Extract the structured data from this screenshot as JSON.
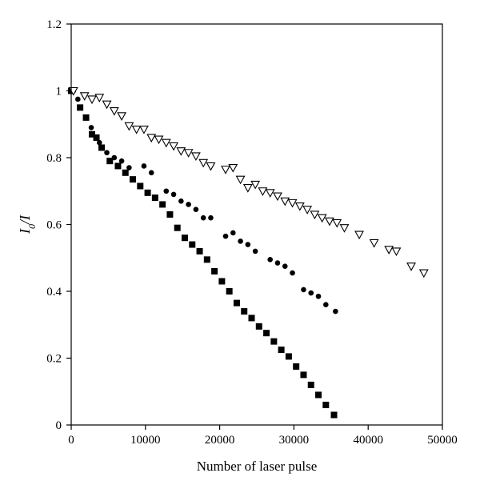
{
  "chart_data": {
    "type": "scatter",
    "xlabel": "Number of laser pulse",
    "ylabel": {
      "main": "I",
      "sub": "0",
      "rest": "/I"
    },
    "xlim": [
      0,
      50000
    ],
    "ylim": [
      0,
      1.2
    ],
    "xticks": [
      0,
      10000,
      20000,
      30000,
      40000,
      50000
    ],
    "yticks": [
      0,
      0.2,
      0.4,
      0.6,
      0.8,
      1,
      1.2
    ],
    "xtick_labels": [
      "0",
      "10000",
      "20000",
      "30000",
      "40000",
      "50000"
    ],
    "ytick_labels": [
      "0",
      "0.2",
      "0.4",
      "0.6",
      "0.8",
      "1",
      "1.2"
    ],
    "grid": false,
    "legend": "none",
    "series": [
      {
        "marker": "square-filled",
        "color": "#000000",
        "x": [
          0,
          1200,
          2000,
          2800,
          3400,
          4100,
          5200,
          6300,
          7300,
          8300,
          9300,
          10300,
          11300,
          12300,
          13300,
          14300,
          15300,
          16300,
          17300,
          18300,
          19300,
          20300,
          21300,
          22300,
          23300,
          24300,
          25300,
          26300,
          27300,
          28300,
          29300,
          30300,
          31300,
          32300,
          33300,
          34300,
          35400
        ],
        "y": [
          1.0,
          0.95,
          0.92,
          0.87,
          0.86,
          0.83,
          0.79,
          0.775,
          0.755,
          0.735,
          0.715,
          0.695,
          0.68,
          0.66,
          0.63,
          0.59,
          0.56,
          0.54,
          0.52,
          0.495,
          0.46,
          0.43,
          0.4,
          0.365,
          0.34,
          0.32,
          0.295,
          0.275,
          0.25,
          0.225,
          0.205,
          0.175,
          0.15,
          0.12,
          0.09,
          0.06,
          0.03
        ]
      },
      {
        "marker": "circle-filled",
        "color": "#000000",
        "x": [
          300,
          900,
          2700,
          3800,
          4800,
          5800,
          6800,
          7800,
          9800,
          10800,
          12800,
          13800,
          14800,
          15800,
          16800,
          17800,
          18800,
          20800,
          21800,
          22800,
          23800,
          24800,
          26800,
          27800,
          28800,
          29800,
          31300,
          32300,
          33300,
          34300,
          35600
        ],
        "y": [
          1.0,
          0.975,
          0.89,
          0.845,
          0.815,
          0.8,
          0.79,
          0.77,
          0.775,
          0.755,
          0.7,
          0.69,
          0.67,
          0.66,
          0.645,
          0.62,
          0.62,
          0.565,
          0.575,
          0.55,
          0.54,
          0.52,
          0.495,
          0.485,
          0.475,
          0.455,
          0.405,
          0.395,
          0.385,
          0.36,
          0.34
        ]
      },
      {
        "marker": "triangle-down-open",
        "color": "#000000",
        "x": [
          300,
          1800,
          2800,
          3800,
          4800,
          5800,
          6800,
          7800,
          8800,
          9800,
          10800,
          11800,
          12800,
          13800,
          14800,
          15800,
          16800,
          17800,
          18800,
          20800,
          21800,
          22800,
          23800,
          24800,
          25800,
          26800,
          27800,
          28800,
          29800,
          30800,
          31800,
          32800,
          33800,
          34800,
          35800,
          36800,
          38800,
          40800,
          42800,
          43800,
          45800,
          47500
        ],
        "y": [
          1.0,
          0.985,
          0.975,
          0.98,
          0.96,
          0.94,
          0.925,
          0.895,
          0.885,
          0.885,
          0.86,
          0.855,
          0.845,
          0.835,
          0.82,
          0.815,
          0.805,
          0.785,
          0.775,
          0.765,
          0.77,
          0.735,
          0.71,
          0.72,
          0.7,
          0.695,
          0.685,
          0.67,
          0.665,
          0.655,
          0.645,
          0.63,
          0.62,
          0.61,
          0.605,
          0.59,
          0.57,
          0.545,
          0.525,
          0.52,
          0.475,
          0.455
        ]
      }
    ]
  }
}
